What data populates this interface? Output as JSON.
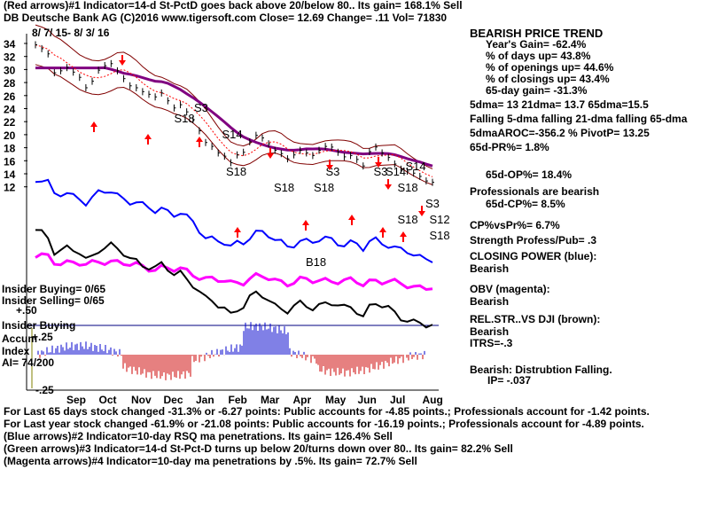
{
  "header": {
    "line1": "(Red arrows)#1 Indicator=14-d St-PctD goes back above 20/below 80..  Its gain= 168.1% Sell",
    "line2": "DB   Deutsche Bank AG  (C)2016 www.tigersoft.com    Close=  12.69  Change= .11 Vol= 71830"
  },
  "date_range": "8/ 7/ 15- 8/ 3/ 16",
  "left_labels": {
    "insider_buying": "Insider Buying= 0/65",
    "insider_selling": "Insider Selling= 0/65",
    "plus50": "+.50",
    "insider_buying2": "Insider Buying",
    "accum": "Accum",
    "plus25": "+.25",
    "index": "Index",
    "ai": "AI= 74/200",
    "minus25": "-.25"
  },
  "right_panel": {
    "trend_title": "BEARISH PRICE TREND",
    "years_gain": "Year's Gain= -62.4%",
    "days_up": "% of days up= 43.8%",
    "openings_up": "% of openings up= 44.6%",
    "closings_up": "% of closings up= 43.4%",
    "gain65": "65-day gain= -31.3%",
    "dma": "5dma= 13 21dma= 13.7 65dma=15.5",
    "falling": "Falling 5-dma falling 21-dma falling 65-dma",
    "aroc": "5dmaAROC=-356.2 %  PivotP= 13.25",
    "pr": "65d-PR%= 1.8%",
    "op": "65d-OP%= 18.4%",
    "pros": "Professionals are bearish",
    "cp": "65d-CP%= 8.5%",
    "cpvspr": "CP%vsPr%=  6.7%",
    "strength": "Strength Profess/Pub= .3",
    "closing_power": "CLOSING POWER (blue):",
    "cp_bear": "Bearish",
    "obv": "OBV (magenta):",
    "obv_bear": "Bearish",
    "relstr": "REL.STR..VS DJI (brown):",
    "relstr_bear": "Bearish",
    "itrs": "ITRS=-.3",
    "distribution": "Bearish: Distrubtion Falling.",
    "ip": "IP= -.037"
  },
  "footer": {
    "l1": "For Last 65 days stock changed -31.3% or -6.27 points:  Public accounts for -4.85 points.;  Professionals account for -1.42 points.",
    "l2": "For Last year stock changed -61.9% or -21.08 points:  Public accounts for -16.19 points.;  Professionals account for -4.89 points.",
    "l3": "(Blue arrows)#2 Indicator=10-day RSQ ma penetrations. Its gain= 126.4% Sell",
    "l4": "(Green arrows)#3 Indicator=14-d St-Pct-D turns up below 20/turns down over 80..  Its gain= 82.2% Sell",
    "l5": "(Magenta arrows)#4 Indicator=10-day ma penetrations by .5%. Its gain= 72.7% Sell"
  },
  "colors": {
    "price": "#000000",
    "ma65": "#800080",
    "bands": "#800000",
    "ma_dotted": "#ff0000",
    "closing_power": "#0000ff",
    "obv": "#ff00ff",
    "relstr": "#000000",
    "accum_pos": "#0000cc",
    "accum_neg": "#cc0000",
    "arrows": "#ff0000"
  },
  "chart_data": {
    "type": "line",
    "ylim": [
      10,
      35
    ],
    "yticks": [
      "34",
      "32",
      "30",
      "28",
      "26",
      "24",
      "22",
      "20",
      "18",
      "16",
      "14",
      "12"
    ],
    "months": [
      "Sep",
      "Oct",
      "Nov",
      "Dec",
      "Jan",
      "Feb",
      "Mar",
      "Apr",
      "May",
      "Jun",
      "Jul",
      "Aug"
    ],
    "series": [
      {
        "name": "DB",
        "x": [
          0,
          4,
          8,
          12,
          16,
          20,
          24,
          28,
          32,
          36,
          40,
          44,
          48,
          52,
          56,
          60,
          64,
          68,
          72,
          76,
          80,
          84,
          88,
          92,
          96,
          100,
          104,
          108,
          112,
          116,
          120,
          124,
          128,
          132,
          136,
          140,
          144,
          148,
          152,
          156,
          160,
          164,
          168,
          172,
          176,
          180,
          184,
          188,
          192,
          196,
          200,
          204,
          208,
          212,
          216,
          220,
          224,
          228,
          232,
          236,
          240,
          244,
          248,
          252
        ],
        "values": [
          33.8,
          33.2,
          32.4,
          29.5,
          29.8,
          30.3,
          29.6,
          28.8,
          27.2,
          28.2,
          29.9,
          30.6,
          30.9,
          29.8,
          28.6,
          27.5,
          27.2,
          26.6,
          26.2,
          25.8,
          26.4,
          25.2,
          24.1,
          24.6,
          23.5,
          22.3,
          20.6,
          18.8,
          18.2,
          17.2,
          16.7,
          15.7,
          16.9,
          17.3,
          18.9,
          19.9,
          19.5,
          18.6,
          17.6,
          17.1,
          16.3,
          16.9,
          17.6,
          17.2,
          16.8,
          17.6,
          18.2,
          18.1,
          17.3,
          16.6,
          16.8,
          16.2,
          15.2,
          17.4,
          18.1,
          17.2,
          16.5,
          15.5,
          14.7,
          14.4,
          14.1,
          13.6,
          12.9,
          12.69
        ]
      }
    ],
    "annotations": [
      "S3",
      "S18",
      "S14",
      "S18",
      "S3",
      "S18",
      "S3",
      "S14",
      "S14",
      "S18",
      "S18",
      "S18",
      "S3",
      "S12",
      "S18",
      "B18"
    ]
  }
}
